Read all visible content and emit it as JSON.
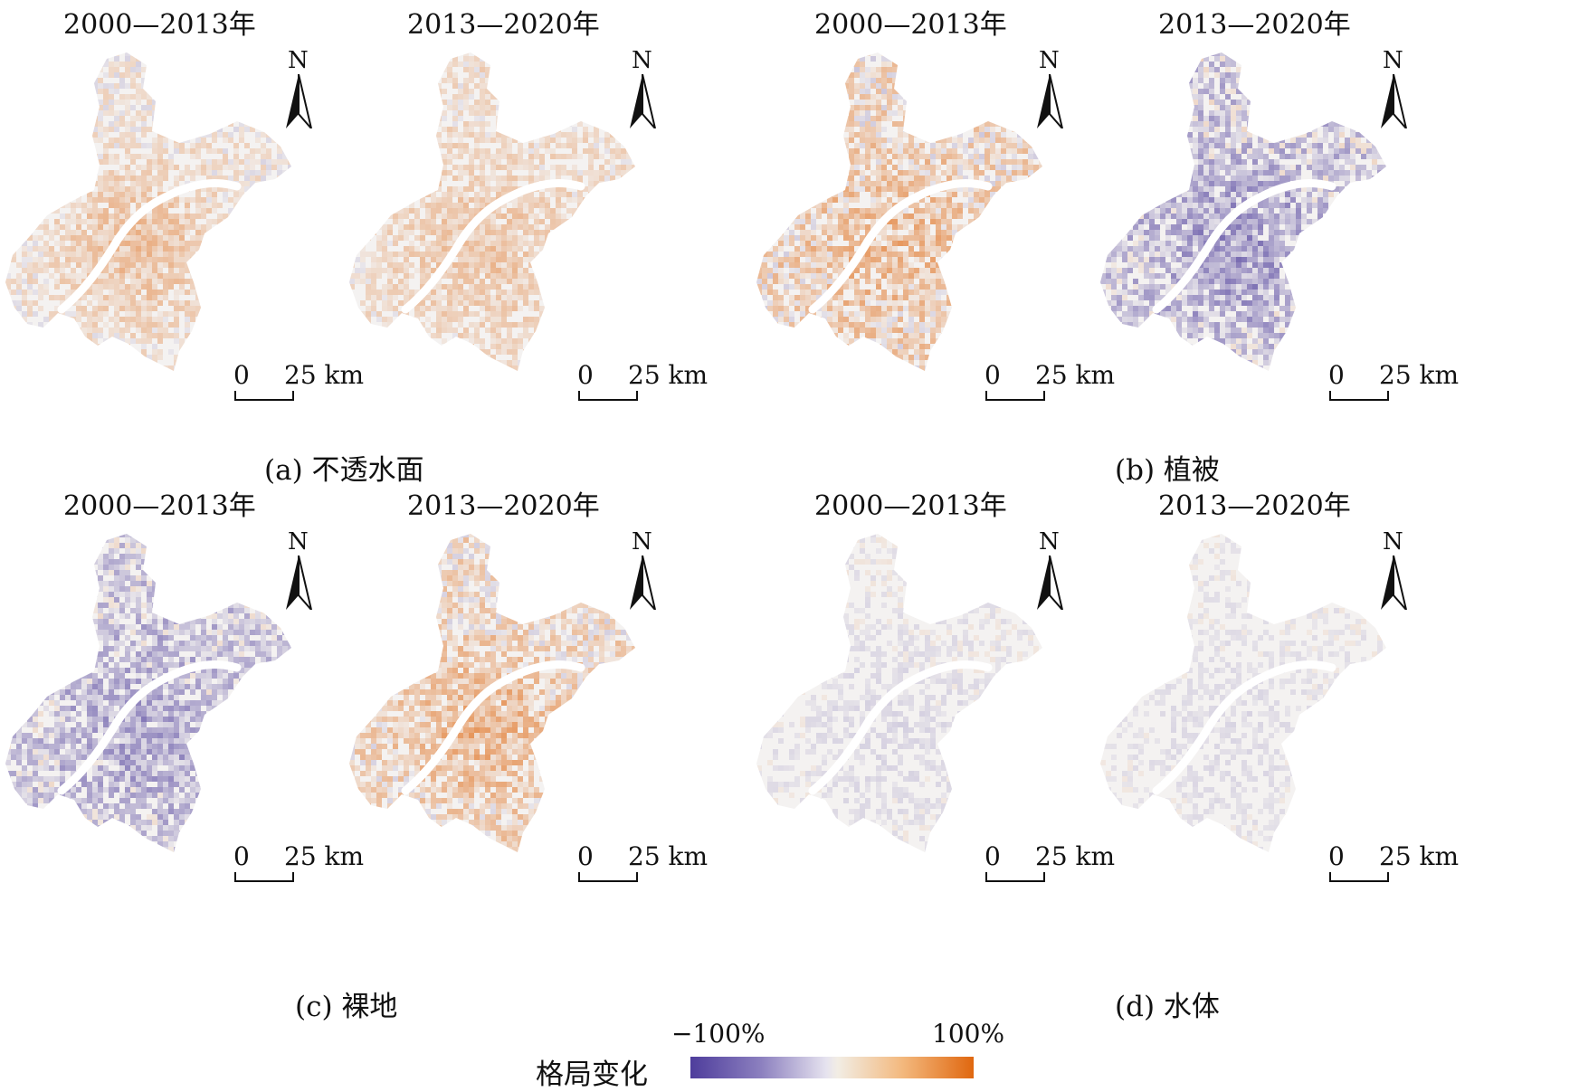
{
  "panels": [
    {
      "period": "2000—2013年",
      "bias": 0.55,
      "intensity": 0.45,
      "hotspot": 0.75
    },
    {
      "period": "2013—2020年",
      "bias": 0.65,
      "intensity": 0.4,
      "hotspot": 0.55
    },
    {
      "period": "2000—2013年",
      "bias": 0.6,
      "intensity": 0.7,
      "hotspot": 0.4
    },
    {
      "period": "2013—2020年",
      "bias": 0.35,
      "intensity": 0.7,
      "hotspot": 0.45
    },
    {
      "period": "2000—2013年",
      "bias": 0.35,
      "intensity": 0.65,
      "hotspot": 0.4
    },
    {
      "period": "2013—2020年",
      "bias": 0.6,
      "intensity": 0.65,
      "hotspot": 0.5
    },
    {
      "period": "2000—2013年",
      "bias": 0.45,
      "intensity": 0.25,
      "hotspot": 0.3
    },
    {
      "period": "2013—2020年",
      "bias": 0.45,
      "intensity": 0.22,
      "hotspot": 0.3
    }
  ],
  "north_label": "N",
  "scale": {
    "zero": "0",
    "length": "25 km"
  },
  "captions": [
    "(a) 不透水面",
    "(b) 植被",
    "(c) 裸地",
    "(d) 水体"
  ],
  "legend": {
    "label": "格局变化",
    "min": "−100%",
    "max": "100%",
    "colors": {
      "negative": "#4e3d9c",
      "neutral": "#f2f0ef",
      "positive": "#e0670f"
    }
  }
}
